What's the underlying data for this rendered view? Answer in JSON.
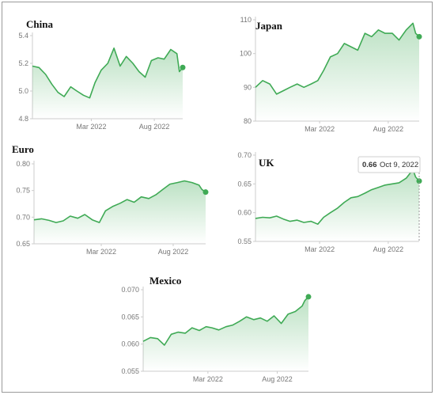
{
  "colors": {
    "line": "#3faa55",
    "fill": "#3faa55",
    "axis": "#cccccc",
    "tick_text": "#777777"
  },
  "chart_data": [
    {
      "type": "area",
      "title": "China",
      "xlabel": "",
      "ylabel": "",
      "x_range": [
        "2021-10-09",
        "2022-10-09"
      ],
      "xticks": [
        {
          "label": "Mar 2022",
          "x": "2022-03-01"
        },
        {
          "label": "Aug 2022",
          "x": "2022-08-01"
        }
      ],
      "ylim": [
        4.8,
        5.4
      ],
      "yticks": [
        4.8,
        5.0,
        5.2,
        5.4
      ],
      "ytick_labels": [
        "4.8",
        "5.0",
        "5.2",
        "5.4"
      ],
      "grid": false,
      "end_marker": true,
      "series": [
        {
          "x": [
            "2021-10-09",
            "2021-10-25",
            "2021-11-10",
            "2021-11-25",
            "2021-12-10",
            "2021-12-25",
            "2022-01-10",
            "2022-01-25",
            "2022-02-10",
            "2022-02-25",
            "2022-03-10",
            "2022-03-25",
            "2022-04-10",
            "2022-04-25",
            "2022-05-10",
            "2022-05-25",
            "2022-06-10",
            "2022-06-25",
            "2022-07-10",
            "2022-07-25",
            "2022-08-10",
            "2022-08-25",
            "2022-09-10",
            "2022-09-25",
            "2022-10-01",
            "2022-10-09"
          ],
          "values": [
            5.18,
            5.17,
            5.12,
            5.05,
            4.99,
            4.96,
            5.03,
            5.0,
            4.97,
            4.95,
            5.06,
            5.15,
            5.2,
            5.31,
            5.18,
            5.25,
            5.2,
            5.14,
            5.1,
            5.22,
            5.24,
            5.23,
            5.3,
            5.27,
            5.14,
            5.17
          ]
        }
      ]
    },
    {
      "type": "area",
      "title": "Japan",
      "xlabel": "",
      "ylabel": "",
      "x_range": [
        "2021-10-09",
        "2022-10-09"
      ],
      "xticks": [
        {
          "label": "Mar 2022",
          "x": "2022-03-01"
        },
        {
          "label": "Aug 2022",
          "x": "2022-08-01"
        }
      ],
      "ylim": [
        80,
        110
      ],
      "yticks": [
        80,
        90,
        100,
        110
      ],
      "ytick_labels": [
        "80",
        "90",
        "100",
        "110"
      ],
      "grid": false,
      "end_marker": true,
      "series": [
        {
          "x": [
            "2021-10-09",
            "2021-10-25",
            "2021-11-10",
            "2021-11-25",
            "2021-12-10",
            "2021-12-25",
            "2022-01-10",
            "2022-01-25",
            "2022-02-10",
            "2022-02-25",
            "2022-03-10",
            "2022-03-25",
            "2022-04-10",
            "2022-04-25",
            "2022-05-10",
            "2022-05-25",
            "2022-06-10",
            "2022-06-25",
            "2022-07-10",
            "2022-07-25",
            "2022-08-10",
            "2022-08-25",
            "2022-09-10",
            "2022-09-25",
            "2022-10-01",
            "2022-10-09"
          ],
          "values": [
            90,
            92,
            91,
            88,
            89,
            90,
            91,
            90,
            91,
            92,
            95,
            99,
            100,
            103,
            102,
            101,
            106,
            105,
            107,
            106,
            106,
            104,
            107,
            109,
            106,
            105
          ]
        }
      ]
    },
    {
      "type": "area",
      "title": "Euro",
      "xlabel": "",
      "ylabel": "",
      "x_range": [
        "2021-10-09",
        "2022-10-09"
      ],
      "xticks": [
        {
          "label": "Mar 2022",
          "x": "2022-03-01"
        },
        {
          "label": "Aug 2022",
          "x": "2022-08-01"
        }
      ],
      "ylim": [
        0.65,
        0.8
      ],
      "yticks": [
        0.65,
        0.7,
        0.75,
        0.8
      ],
      "ytick_labels": [
        "0.65",
        "0.70",
        "0.75",
        "0.80"
      ],
      "grid": false,
      "end_marker": true,
      "series": [
        {
          "x": [
            "2021-10-09",
            "2021-10-25",
            "2021-11-10",
            "2021-11-25",
            "2021-12-10",
            "2021-12-25",
            "2022-01-10",
            "2022-01-25",
            "2022-02-10",
            "2022-02-25",
            "2022-03-10",
            "2022-03-25",
            "2022-04-10",
            "2022-04-25",
            "2022-05-10",
            "2022-05-25",
            "2022-06-10",
            "2022-06-25",
            "2022-07-10",
            "2022-07-25",
            "2022-08-10",
            "2022-08-25",
            "2022-09-10",
            "2022-09-25",
            "2022-10-01",
            "2022-10-09"
          ],
          "values": [
            0.695,
            0.697,
            0.694,
            0.69,
            0.693,
            0.702,
            0.698,
            0.705,
            0.695,
            0.69,
            0.712,
            0.72,
            0.726,
            0.733,
            0.728,
            0.738,
            0.735,
            0.742,
            0.752,
            0.762,
            0.765,
            0.768,
            0.765,
            0.76,
            0.752,
            0.747
          ]
        }
      ]
    },
    {
      "type": "area",
      "title": "UK",
      "xlabel": "",
      "ylabel": "",
      "x_range": [
        "2021-10-09",
        "2022-10-09"
      ],
      "xticks": [
        {
          "label": "Mar 2022",
          "x": "2022-03-01"
        },
        {
          "label": "Aug 2022",
          "x": "2022-08-01"
        }
      ],
      "ylim": [
        0.55,
        0.7
      ],
      "yticks": [
        0.55,
        0.6,
        0.65,
        0.7
      ],
      "ytick_labels": [
        "0.55",
        "0.60",
        "0.65",
        "0.70"
      ],
      "grid": false,
      "end_marker": true,
      "tooltip": {
        "value": "0.66",
        "date": "Oct 9, 2022"
      },
      "series": [
        {
          "x": [
            "2021-10-09",
            "2021-10-25",
            "2021-11-10",
            "2021-11-25",
            "2021-12-10",
            "2021-12-25",
            "2022-01-10",
            "2022-01-25",
            "2022-02-10",
            "2022-02-25",
            "2022-03-10",
            "2022-03-25",
            "2022-04-10",
            "2022-04-25",
            "2022-05-10",
            "2022-05-25",
            "2022-06-10",
            "2022-06-25",
            "2022-07-10",
            "2022-07-25",
            "2022-08-10",
            "2022-08-25",
            "2022-09-10",
            "2022-09-25",
            "2022-10-01",
            "2022-10-09"
          ],
          "values": [
            0.59,
            0.592,
            0.591,
            0.594,
            0.589,
            0.585,
            0.587,
            0.583,
            0.585,
            0.58,
            0.592,
            0.6,
            0.608,
            0.618,
            0.626,
            0.628,
            0.634,
            0.64,
            0.644,
            0.648,
            0.65,
            0.652,
            0.66,
            0.675,
            0.662,
            0.655
          ]
        }
      ]
    },
    {
      "type": "area",
      "title": "Mexico",
      "xlabel": "",
      "ylabel": "",
      "x_range": [
        "2021-10-09",
        "2022-10-09"
      ],
      "xticks": [
        {
          "label": "Mar 2022",
          "x": "2022-03-01"
        },
        {
          "label": "Aug 2022",
          "x": "2022-08-01"
        }
      ],
      "ylim": [
        0.055,
        0.07
      ],
      "yticks": [
        0.055,
        0.06,
        0.065,
        0.07
      ],
      "ytick_labels": [
        "0.055",
        "0.060",
        "0.065",
        "0.070"
      ],
      "grid": false,
      "end_marker": true,
      "series": [
        {
          "x": [
            "2021-10-09",
            "2021-10-25",
            "2021-11-10",
            "2021-11-25",
            "2021-12-10",
            "2021-12-25",
            "2022-01-10",
            "2022-01-25",
            "2022-02-10",
            "2022-02-25",
            "2022-03-10",
            "2022-03-25",
            "2022-04-10",
            "2022-04-25",
            "2022-05-10",
            "2022-05-25",
            "2022-06-10",
            "2022-06-25",
            "2022-07-10",
            "2022-07-25",
            "2022-08-10",
            "2022-08-25",
            "2022-09-10",
            "2022-09-25",
            "2022-10-01",
            "2022-10-09"
          ],
          "values": [
            0.0605,
            0.0612,
            0.061,
            0.0598,
            0.0618,
            0.0622,
            0.062,
            0.063,
            0.0625,
            0.0632,
            0.063,
            0.0626,
            0.0632,
            0.0635,
            0.0642,
            0.065,
            0.0645,
            0.0648,
            0.0642,
            0.0652,
            0.0638,
            0.0655,
            0.066,
            0.067,
            0.068,
            0.0687
          ]
        }
      ]
    }
  ]
}
